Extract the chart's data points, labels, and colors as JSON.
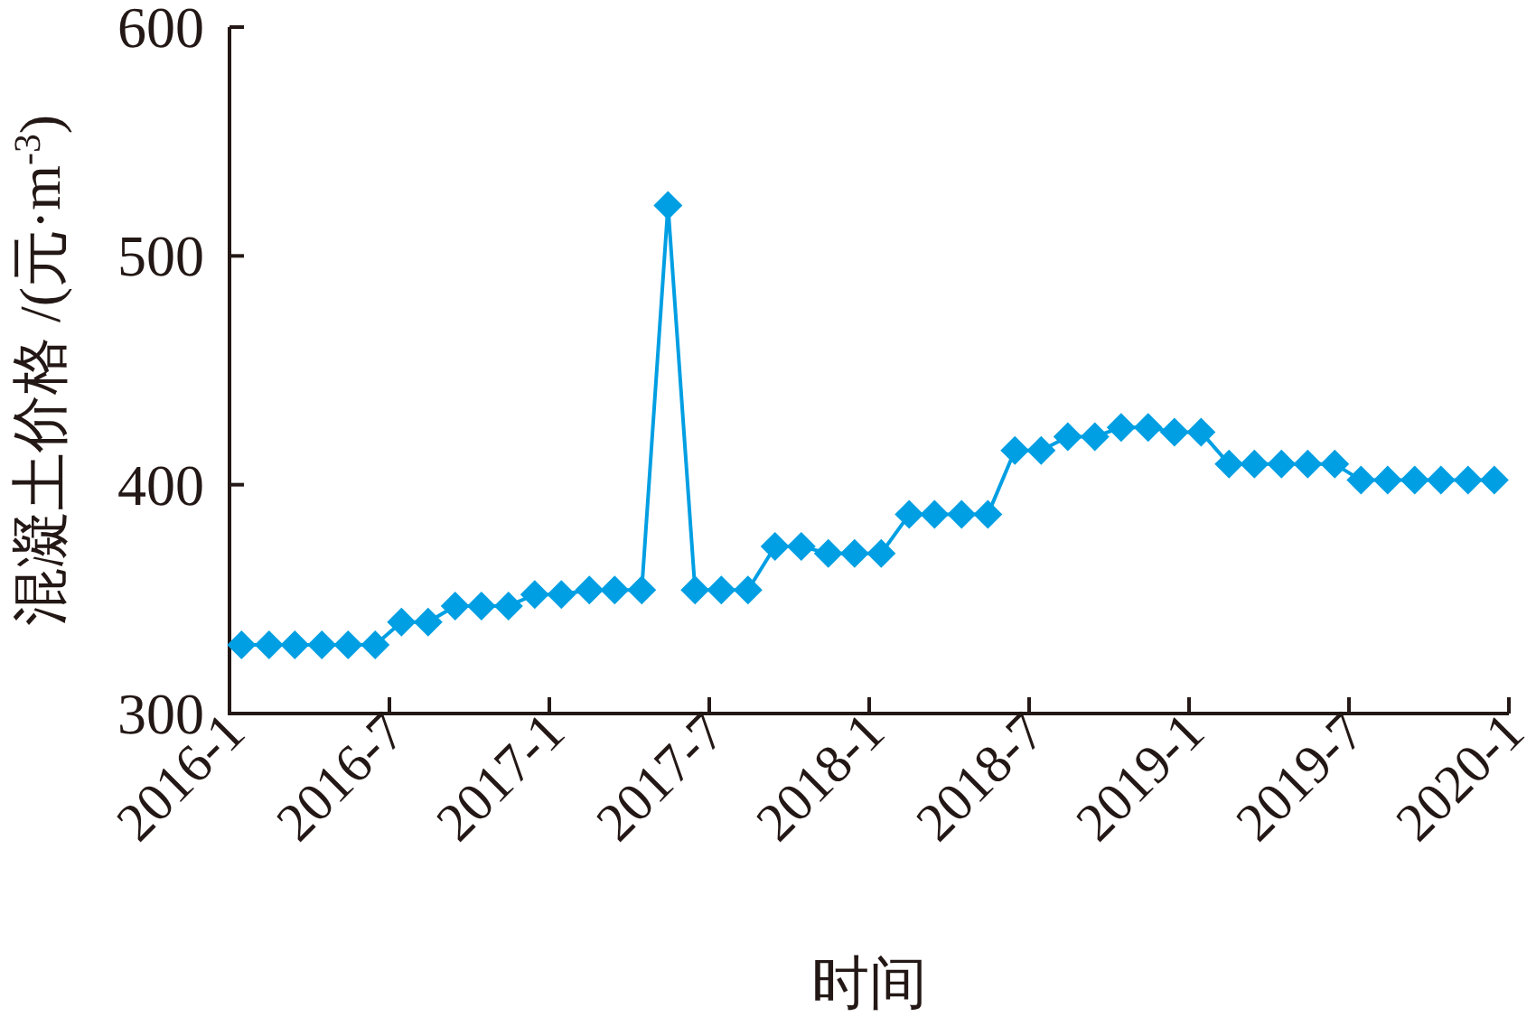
{
  "chart_data": {
    "type": "line",
    "xlabel": "时间",
    "ylabel": "混凝土价格 /(元·m$^{-3}$)",
    "x": [
      "2016-01-15",
      "2016-02-15",
      "2016-03-15",
      "2016-04-15",
      "2016-05-15",
      "2016-06-15",
      "2016-07-15",
      "2016-08-15",
      "2016-09-15",
      "2016-10-15",
      "2016-11-15",
      "2016-12-15",
      "2017-01-15",
      "2017-02-15",
      "2017-03-15",
      "2017-04-15",
      "2017-05-15",
      "2017-06-15",
      "2017-07-15",
      "2017-08-15",
      "2017-09-15",
      "2017-10-15",
      "2017-11-15",
      "2017-12-15",
      "2018-01-15",
      "2018-02-15",
      "2018-03-15",
      "2018-04-15",
      "2018-05-15",
      "2018-06-15",
      "2018-07-15",
      "2018-08-15",
      "2018-09-15",
      "2018-10-15",
      "2018-11-15",
      "2018-12-15",
      "2019-01-15",
      "2019-02-15",
      "2019-03-15",
      "2019-04-15",
      "2019-05-15",
      "2019-06-15",
      "2019-07-15",
      "2019-08-15",
      "2019-09-15",
      "2019-10-15",
      "2019-11-15",
      "2019-12-15"
    ],
    "values": [
      330,
      330,
      330,
      330,
      330,
      330,
      340,
      340,
      347,
      347,
      347,
      352,
      352,
      354,
      354,
      354,
      522,
      354,
      354,
      354,
      373,
      373,
      370,
      370,
      370,
      387,
      387,
      387,
      387,
      415,
      415,
      421,
      421,
      425,
      425,
      423,
      423,
      409,
      409,
      409,
      409,
      409,
      402,
      402,
      402,
      402,
      402,
      402
    ],
    "color": "#009fe3",
    "marker": "diamond",
    "line_style": "solid",
    "xlim": [
      "2016-01",
      "2020-01"
    ],
    "xticks": [
      {
        "value": "2016-01",
        "label": "2016-1"
      },
      {
        "value": "2016-07",
        "label": "2016-7"
      },
      {
        "value": "2017-01",
        "label": "2017-1"
      },
      {
        "value": "2017-07",
        "label": "2017-7"
      },
      {
        "value": "2018-01",
        "label": "2018-1"
      },
      {
        "value": "2018-07",
        "label": "2018-7"
      },
      {
        "value": "2019-01",
        "label": "2019-1"
      },
      {
        "value": "2019-07",
        "label": "2019-7"
      },
      {
        "value": "2020-01",
        "label": "2020-1"
      }
    ],
    "ylim": [
      300,
      600
    ],
    "yticks": [
      300,
      400,
      500,
      600
    ]
  }
}
